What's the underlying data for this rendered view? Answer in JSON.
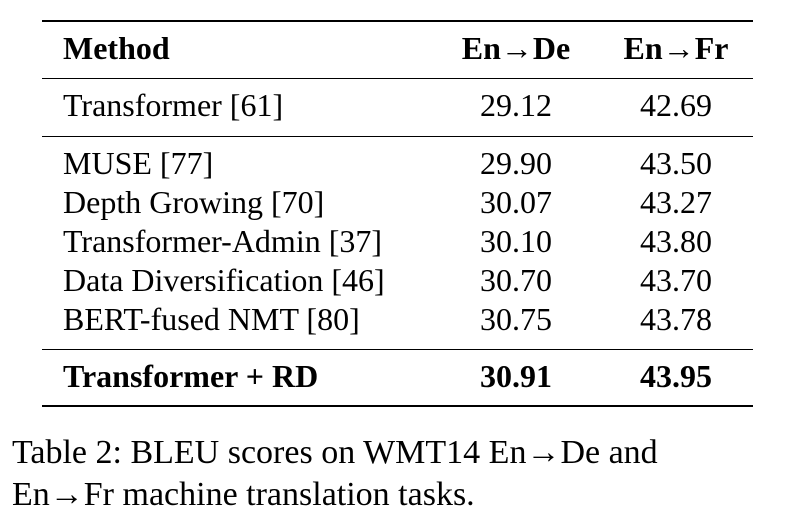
{
  "table": {
    "header": {
      "method": "Method",
      "en_de": "En→De",
      "en_fr": "En→Fr"
    },
    "baseline": [
      {
        "method": "Transformer [61]",
        "en_de": "29.12",
        "en_fr": "42.69"
      }
    ],
    "comparisons": [
      {
        "method": "MUSE [77]",
        "en_de": "29.90",
        "en_fr": "43.50"
      },
      {
        "method": "Depth Growing [70]",
        "en_de": "30.07",
        "en_fr": "43.27"
      },
      {
        "method": "Transformer-Admin [37]",
        "en_de": "30.10",
        "en_fr": "43.80"
      },
      {
        "method": "Data Diversification [46]",
        "en_de": "30.70",
        "en_fr": "43.70"
      },
      {
        "method": "BERT-fused NMT [80]",
        "en_de": "30.75",
        "en_fr": "43.78"
      }
    ],
    "ours": [
      {
        "method": "Transformer + RD",
        "en_de": "30.91",
        "en_fr": "43.95"
      }
    ]
  },
  "caption": {
    "line1": "Table 2: BLEU scores on WMT14 En→De and",
    "line2": "En→Fr machine translation tasks."
  }
}
